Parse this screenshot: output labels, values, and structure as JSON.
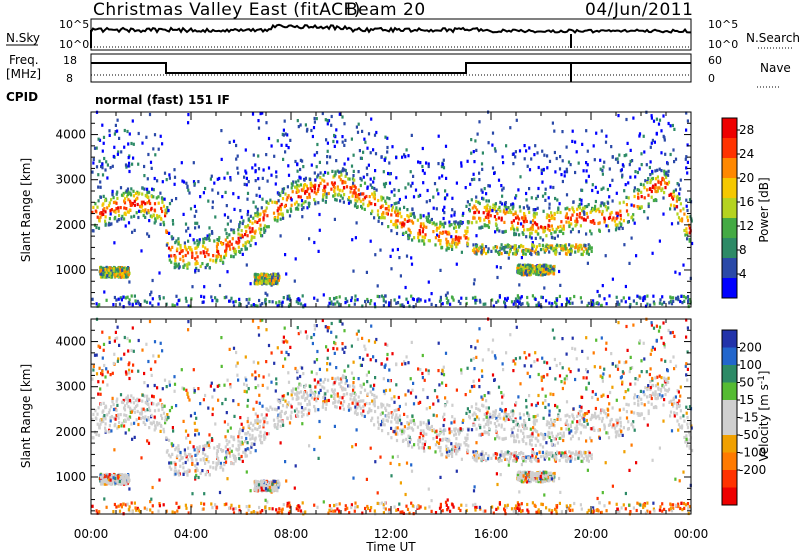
{
  "header": {
    "title": "Christmas Valley East (fitACF)",
    "beam": "Beam 20",
    "date": "04/Jun/2011"
  },
  "params": {
    "nsky_label": "N.Sky",
    "nsky_ticks": [
      "10^5",
      "10^0"
    ],
    "nsearch_label": "N.Search",
    "nsearch_ticks": [
      "10^5",
      "10^0"
    ],
    "freq_label": "Freq.",
    "freq_unit": "[MHz]",
    "freq_ticks": [
      "18",
      "8"
    ],
    "nave_label": "Nave",
    "nave_ticks": [
      "60",
      "0"
    ],
    "cpid_label": "CPID",
    "cpid_value": "normal (fast) 151 IF",
    "freq_steps": [
      {
        "from": 0.0,
        "to": 3.0,
        "level": "high"
      },
      {
        "from": 3.0,
        "to": 15.0,
        "level": "low"
      },
      {
        "from": 15.0,
        "to": 24.0,
        "level": "high"
      }
    ]
  },
  "chart_data": [
    {
      "type": "heatmap",
      "panel": "power",
      "ylabel": "Slant Range [km]",
      "xlabel": "Time UT",
      "x_ticks": [
        "00:00",
        "04:00",
        "08:00",
        "12:00",
        "16:00",
        "20:00",
        "00:00"
      ],
      "xlim_hours": [
        0,
        24
      ],
      "y_ticks": [
        1000,
        2000,
        3000,
        4000
      ],
      "ylim_km": [
        180,
        4500
      ],
      "colorbar": {
        "label": "Power [dB]",
        "ticks": [
          4,
          8,
          12,
          16,
          20,
          24,
          28
        ],
        "range": [
          0,
          30
        ],
        "colors": [
          "#0000ff",
          "#2a49a8",
          "#2d8a66",
          "#44aa44",
          "#b5d320",
          "#f5c800",
          "#ff8800",
          "#ff3300",
          "#ee0000"
        ]
      },
      "echo_band_km": [
        [
          0.0,
          2200
        ],
        [
          1.0,
          2400
        ],
        [
          2.0,
          2500
        ],
        [
          2.9,
          2300
        ],
        [
          3.1,
          1400
        ],
        [
          4.0,
          1300
        ],
        [
          5.0,
          1400
        ],
        [
          6.0,
          1700
        ],
        [
          7.0,
          2200
        ],
        [
          8.0,
          2600
        ],
        [
          9.0,
          2800
        ],
        [
          10.0,
          2900
        ],
        [
          11.0,
          2600
        ],
        [
          12.0,
          2200
        ],
        [
          13.0,
          1900
        ],
        [
          14.0,
          1750
        ],
        [
          15.0,
          1700
        ],
        [
          15.2,
          2300
        ],
        [
          16.0,
          2200
        ],
        [
          17.0,
          2100
        ],
        [
          18.0,
          2000
        ],
        [
          19.0,
          2100
        ],
        [
          19.1,
          2200
        ],
        [
          20.0,
          2100
        ],
        [
          21.0,
          2200
        ],
        [
          22.0,
          2600
        ],
        [
          22.8,
          3000
        ],
        [
          23.5,
          2300
        ],
        [
          24.0,
          1800
        ]
      ],
      "secondary_echoes": [
        {
          "from": 0.3,
          "to": 1.5,
          "range_km": 950
        },
        {
          "from": 6.5,
          "to": 7.5,
          "range_km": 800
        },
        {
          "from": 15.2,
          "to": 20.0,
          "range_km": 1450
        },
        {
          "from": 17.0,
          "to": 18.5,
          "range_km": 1000
        }
      ]
    },
    {
      "type": "heatmap",
      "panel": "velocity",
      "ylabel": "Slant Range [km]",
      "xlabel": "Time UT",
      "x_ticks": [
        "00:00",
        "04:00",
        "08:00",
        "12:00",
        "16:00",
        "20:00",
        "00:00"
      ],
      "xlim_hours": [
        0,
        24
      ],
      "y_ticks": [
        1000,
        2000,
        3000,
        4000
      ],
      "ylim_km": [
        180,
        4500
      ],
      "colorbar": {
        "label": "Velocity [m s^-1]",
        "ticks": [
          "200",
          "100",
          "50",
          "15",
          "-15",
          "-50",
          "-100",
          "-200"
        ],
        "colors": [
          "#2233aa",
          "#2266cc",
          "#2d8a66",
          "#55bb33",
          "#cfcfcf",
          "#cfcfcf",
          "#f0a000",
          "#ff7a00",
          "#ff3300",
          "#ee0000"
        ]
      },
      "echo_band_km": [
        [
          0.0,
          2200
        ],
        [
          1.0,
          2400
        ],
        [
          2.0,
          2500
        ],
        [
          2.9,
          2300
        ],
        [
          3.1,
          1400
        ],
        [
          4.0,
          1300
        ],
        [
          5.0,
          1400
        ],
        [
          6.0,
          1700
        ],
        [
          7.0,
          2200
        ],
        [
          8.0,
          2600
        ],
        [
          9.0,
          2800
        ],
        [
          10.0,
          2900
        ],
        [
          11.0,
          2600
        ],
        [
          12.0,
          2200
        ],
        [
          13.0,
          1900
        ],
        [
          14.0,
          1750
        ],
        [
          15.0,
          1700
        ],
        [
          15.2,
          2300
        ],
        [
          16.0,
          2200
        ],
        [
          17.0,
          2100
        ],
        [
          18.0,
          2000
        ],
        [
          19.0,
          2100
        ],
        [
          19.1,
          2200
        ],
        [
          20.0,
          2100
        ],
        [
          21.0,
          2200
        ],
        [
          22.0,
          2600
        ],
        [
          22.8,
          3000
        ],
        [
          23.5,
          2300
        ],
        [
          24.0,
          1800
        ]
      ]
    }
  ],
  "colors": {
    "background": "#ffffff",
    "axis": "#000000",
    "ground_scatter": "#aaaaaa"
  }
}
